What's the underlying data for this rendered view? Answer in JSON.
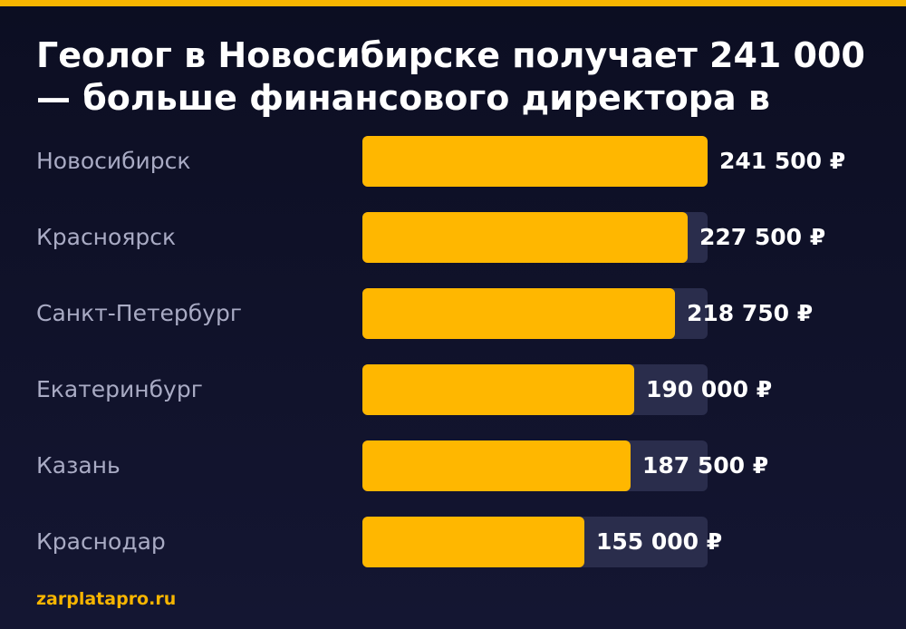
{
  "accent_color": "#ffb700",
  "chart_data": {
    "type": "bar",
    "orientation": "horizontal",
    "title": "Геолог в Новосибирске получает 241 000 — больше финансового директора в",
    "categories": [
      "Новосибирск",
      "Красноярск",
      "Санкт-Петербург",
      "Екатеринбург",
      "Казань",
      "Краснодар"
    ],
    "values": [
      241500,
      227500,
      218750,
      190000,
      187500,
      155000
    ],
    "value_labels": [
      "241 500 ₽",
      "227 500 ₽",
      "218 750 ₽",
      "190 000 ₽",
      "187 500 ₽",
      "155 000 ₽"
    ],
    "xlim": [
      0,
      241500
    ]
  },
  "footer": {
    "source": "zarplatapro.ru"
  }
}
